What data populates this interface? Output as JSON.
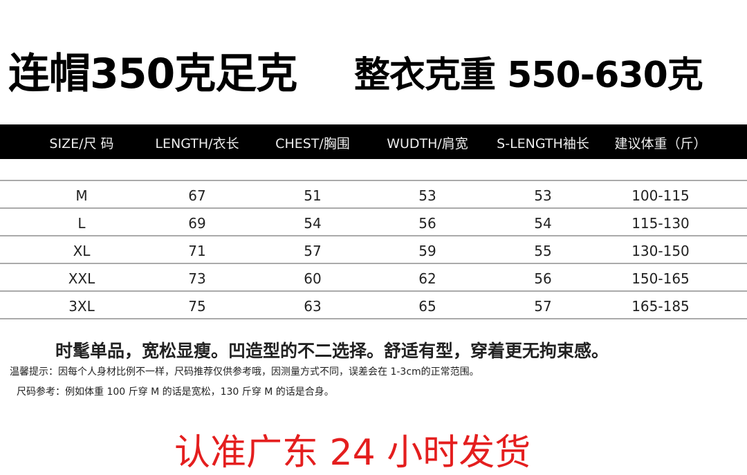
{
  "title": {
    "left": "连帽350克足克",
    "right": "整衣克重 550-630克"
  },
  "table": {
    "headers": [
      "SIZE/尺 码",
      "LENGTH/衣长",
      "CHEST/胸围",
      "WUDTH/肩宽",
      "S-LENGTH袖长",
      "建议体重（斤）"
    ],
    "rows": [
      [
        "M",
        "67",
        "51",
        "53",
        "53",
        "100-115"
      ],
      [
        "L",
        "69",
        "54",
        "56",
        "54",
        "115-130"
      ],
      [
        "XL",
        "71",
        "57",
        "59",
        "55",
        "130-150"
      ],
      [
        "XXL",
        "73",
        "60",
        "62",
        "56",
        "150-165"
      ],
      [
        "3XL",
        "75",
        "63",
        "65",
        "57",
        "165-185"
      ]
    ]
  },
  "tagline": "时髦单品，宽松显瘦。凹造型的不二选择。舒适有型，穿着更无拘束感。",
  "notes": [
    "温馨提示：因每个人身材比例不一样，尺码推荐仅供参考哦，因测量方式不同，误差会在 1-3cm的正常范围。",
    "尺码参考：例如体重 100 斤穿 M 的话是宽松，130 斤穿 M 的话是合身。"
  ],
  "promo": "认准广东 24 小时发货",
  "colors": {
    "header_bg": "#000000",
    "promo": "#e41e1e"
  }
}
